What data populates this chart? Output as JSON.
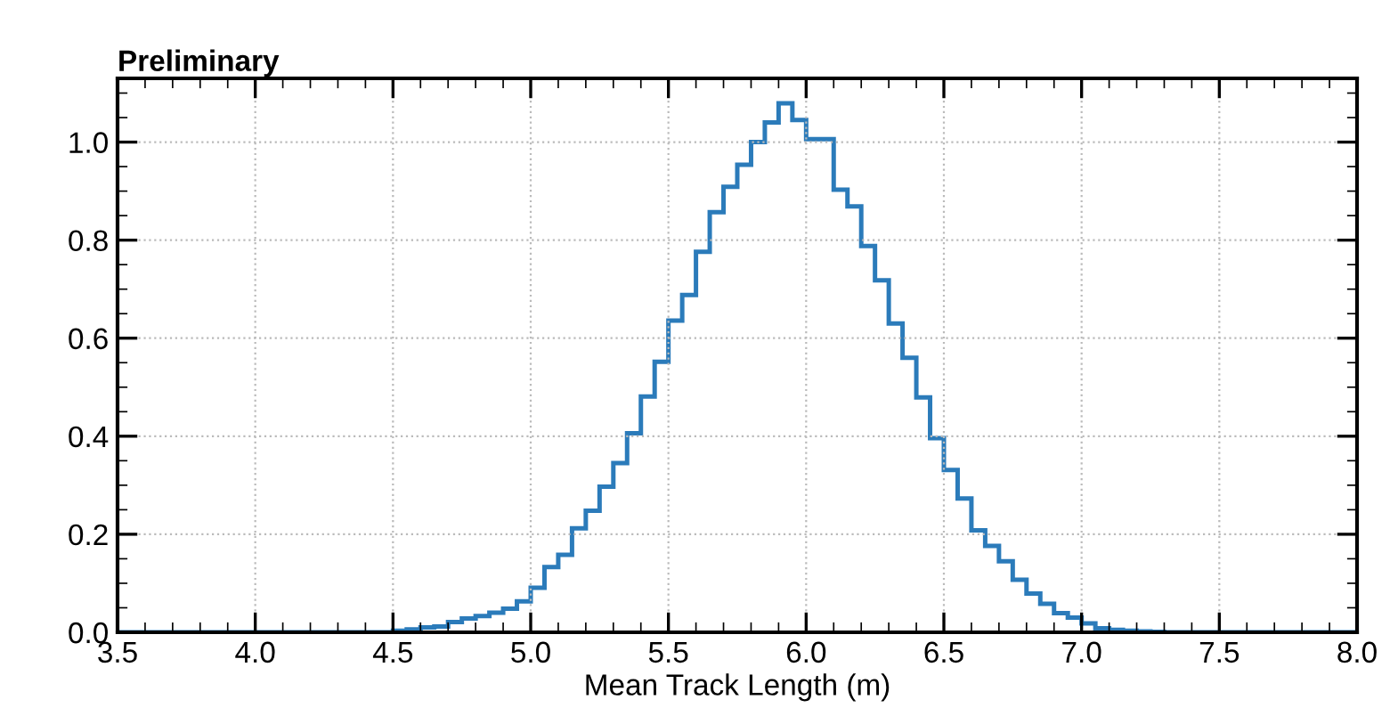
{
  "chart_data": {
    "type": "histogram",
    "title": "Preliminary",
    "xlabel": "Mean Track Length (m)",
    "bins": [
      3.5,
      3.55,
      3.6,
      3.65,
      3.7,
      3.75,
      3.8,
      3.85,
      3.9,
      3.95,
      4.0,
      4.05,
      4.1,
      4.15,
      4.2,
      4.25,
      4.3,
      4.35,
      4.4,
      4.45,
      4.5,
      4.55,
      4.6,
      4.65,
      4.7,
      4.75,
      4.8,
      4.85,
      4.9,
      4.95,
      5.0,
      5.05,
      5.1,
      5.15,
      5.2,
      5.25,
      5.3,
      5.35,
      5.4,
      5.45,
      5.5,
      5.55,
      5.6,
      5.65,
      5.7,
      5.75,
      5.8,
      5.85,
      5.9,
      5.95,
      6.0,
      6.05,
      6.1,
      6.15,
      6.2,
      6.25,
      6.3,
      6.35,
      6.4,
      6.45,
      6.5,
      6.55,
      6.6,
      6.65,
      6.7,
      6.75,
      6.8,
      6.85,
      6.9,
      6.95,
      7.0,
      7.05,
      7.1,
      7.15,
      7.2,
      7.25,
      7.3,
      7.35,
      7.4,
      7.45,
      7.5,
      7.55,
      7.6,
      7.65,
      7.7,
      7.75,
      7.8,
      7.85,
      7.9,
      7.95,
      8.0
    ],
    "values": [
      0,
      0,
      0,
      0,
      0,
      0,
      0,
      0,
      0,
      0,
      0,
      0,
      0,
      0,
      0,
      0,
      0,
      0,
      0,
      0,
      0.003,
      0.006,
      0.01,
      0.012,
      0.021,
      0.028,
      0.033,
      0.04,
      0.048,
      0.063,
      0.091,
      0.133,
      0.158,
      0.212,
      0.248,
      0.297,
      0.345,
      0.406,
      0.481,
      0.552,
      0.636,
      0.688,
      0.776,
      0.857,
      0.909,
      0.954,
      1.0,
      1.04,
      1.079,
      1.045,
      1.006,
      1.006,
      0.903,
      0.869,
      0.788,
      0.718,
      0.63,
      0.56,
      0.479,
      0.396,
      0.331,
      0.273,
      0.208,
      0.176,
      0.145,
      0.107,
      0.079,
      0.058,
      0.039,
      0.03,
      0.018,
      0.008,
      0.005,
      0.003,
      0.002,
      0.001,
      0,
      0,
      0,
      0,
      0,
      0,
      0,
      0,
      0,
      0,
      0,
      0,
      0,
      0
    ],
    "color": "#2b7bba",
    "xlim": [
      3.5,
      8.0
    ],
    "xticks": [
      {
        "value": 3.5,
        "label": "3.5"
      },
      {
        "value": 4.0,
        "label": "4.0"
      },
      {
        "value": 4.5,
        "label": "4.5"
      },
      {
        "value": 5.0,
        "label": "5.0"
      },
      {
        "value": 5.5,
        "label": "5.5"
      },
      {
        "value": 6.0,
        "label": "6.0"
      },
      {
        "value": 6.5,
        "label": "6.5"
      },
      {
        "value": 7.0,
        "label": "7.0"
      },
      {
        "value": 7.5,
        "label": "7.5"
      },
      {
        "value": 8.0,
        "label": "8.0"
      }
    ],
    "ylim": [
      0,
      1.13
    ],
    "yticks": [
      {
        "value": 0,
        "label": "0.0"
      },
      {
        "value": 0.2,
        "label": "0.2"
      },
      {
        "value": 0.4,
        "label": "0.4"
      },
      {
        "value": 0.6,
        "label": "0.6"
      },
      {
        "value": 0.8,
        "label": "0.8"
      },
      {
        "value": 1.0,
        "label": "1.0"
      }
    ],
    "grid": true
  }
}
